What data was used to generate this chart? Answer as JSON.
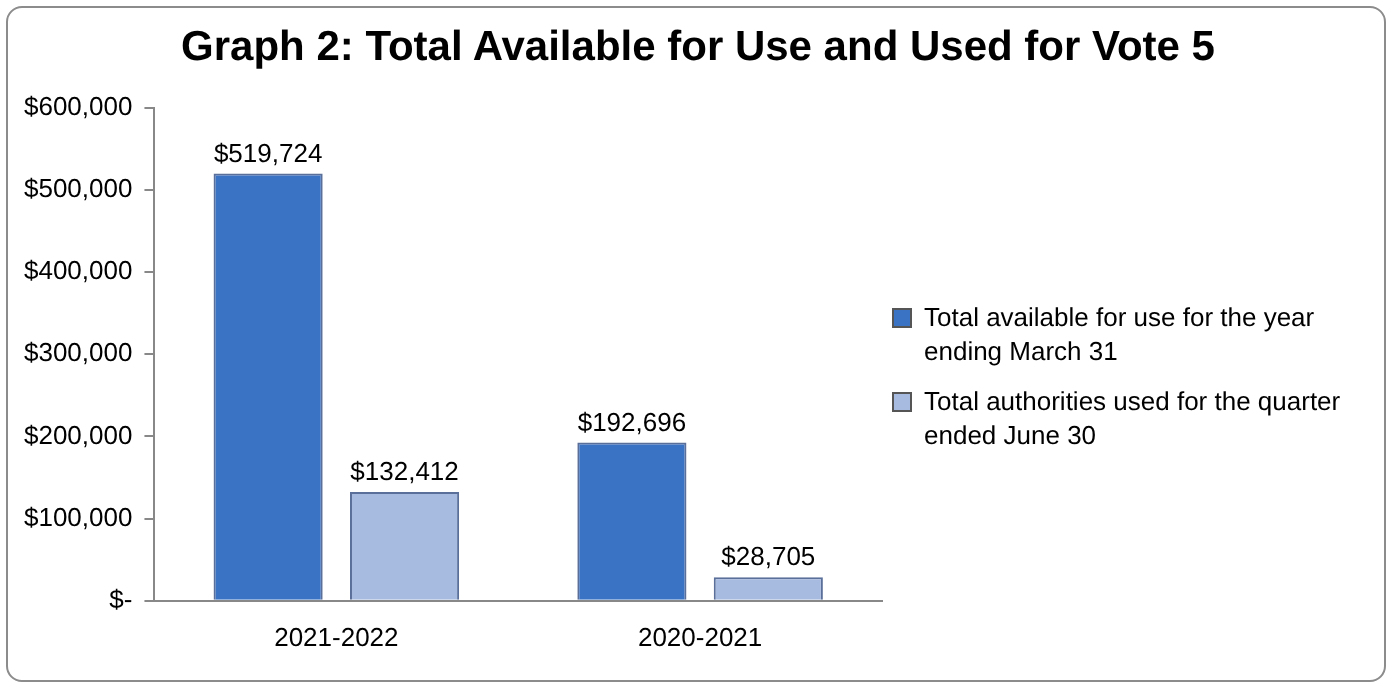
{
  "chart_data": {
    "type": "bar",
    "title": "Graph 2: Total Available for Use and Used for Vote 5",
    "categories": [
      "2021-2022",
      "2020-2021"
    ],
    "series": [
      {
        "name": "Total available for use for the year ending March 31",
        "color": "#3a72c4",
        "values": [
          519724,
          192696
        ],
        "value_labels": [
          "$519,724",
          "$192,696"
        ]
      },
      {
        "name": "Total authorities used for the quarter ended June 30",
        "color": "#a7badf",
        "values": [
          132412,
          28705
        ],
        "value_labels": [
          "$132,412",
          "$28,705"
        ]
      }
    ],
    "ylim": [
      0,
      600000
    ],
    "yticks": [
      {
        "value": 0,
        "label": "$-"
      },
      {
        "value": 100000,
        "label": "$100,000"
      },
      {
        "value": 200000,
        "label": "$200,000"
      },
      {
        "value": 300000,
        "label": "$300,000"
      },
      {
        "value": 400000,
        "label": "$400,000"
      },
      {
        "value": 500000,
        "label": "$500,000"
      },
      {
        "value": 600000,
        "label": "$600,000"
      }
    ],
    "grid": false,
    "legend": "right"
  }
}
